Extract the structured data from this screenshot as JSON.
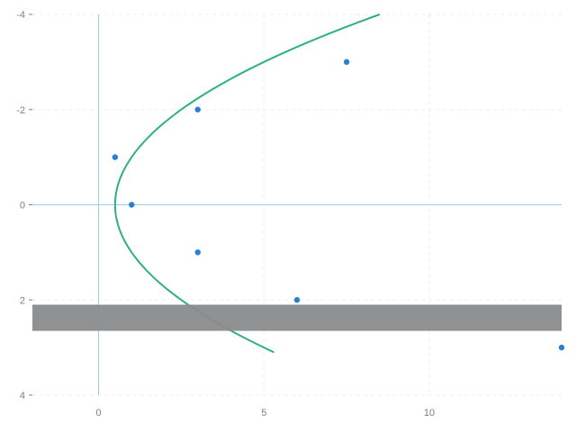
{
  "chart_data": {
    "type": "scatter",
    "title": "",
    "xlabel": "",
    "ylabel": "",
    "xlim": [
      -2,
      14
    ],
    "ylim": [
      -4,
      4
    ],
    "y_axis_inverted": true,
    "grid": true,
    "legend": "none",
    "x_ticks": [
      0,
      5,
      10
    ],
    "x_tick_labels": [
      "0",
      "5",
      "10"
    ],
    "y_ticks": [
      -4,
      -2,
      0,
      2,
      4
    ],
    "y_tick_labels": [
      "-4",
      "-2",
      "0",
      "2",
      "4"
    ],
    "points": [
      {
        "x": 0.5,
        "y": -1
      },
      {
        "x": 1,
        "y": 0
      },
      {
        "x": 3,
        "y": -2
      },
      {
        "x": 3,
        "y": 1
      },
      {
        "x": 6,
        "y": 2
      },
      {
        "x": 7.5,
        "y": -3
      },
      {
        "x": 14,
        "y": 3
      }
    ],
    "curve": {
      "relation": "x = y^2 / 2 + 0.5",
      "y_range": [
        -4,
        3.1
      ]
    },
    "reference_lines": {
      "vertical_x": 0,
      "horizontal_y": 0
    },
    "band": {
      "y_range": [
        2.1,
        2.65
      ],
      "x_range": [
        -2,
        14
      ]
    },
    "colors": {
      "points": "#2a7fd4",
      "curve": "#2fb27a",
      "reference_lines": "#9fcfe8",
      "band": "#8a8b8d",
      "grid": "#eeeeee",
      "tick_labels": "#7f7f7f"
    }
  }
}
